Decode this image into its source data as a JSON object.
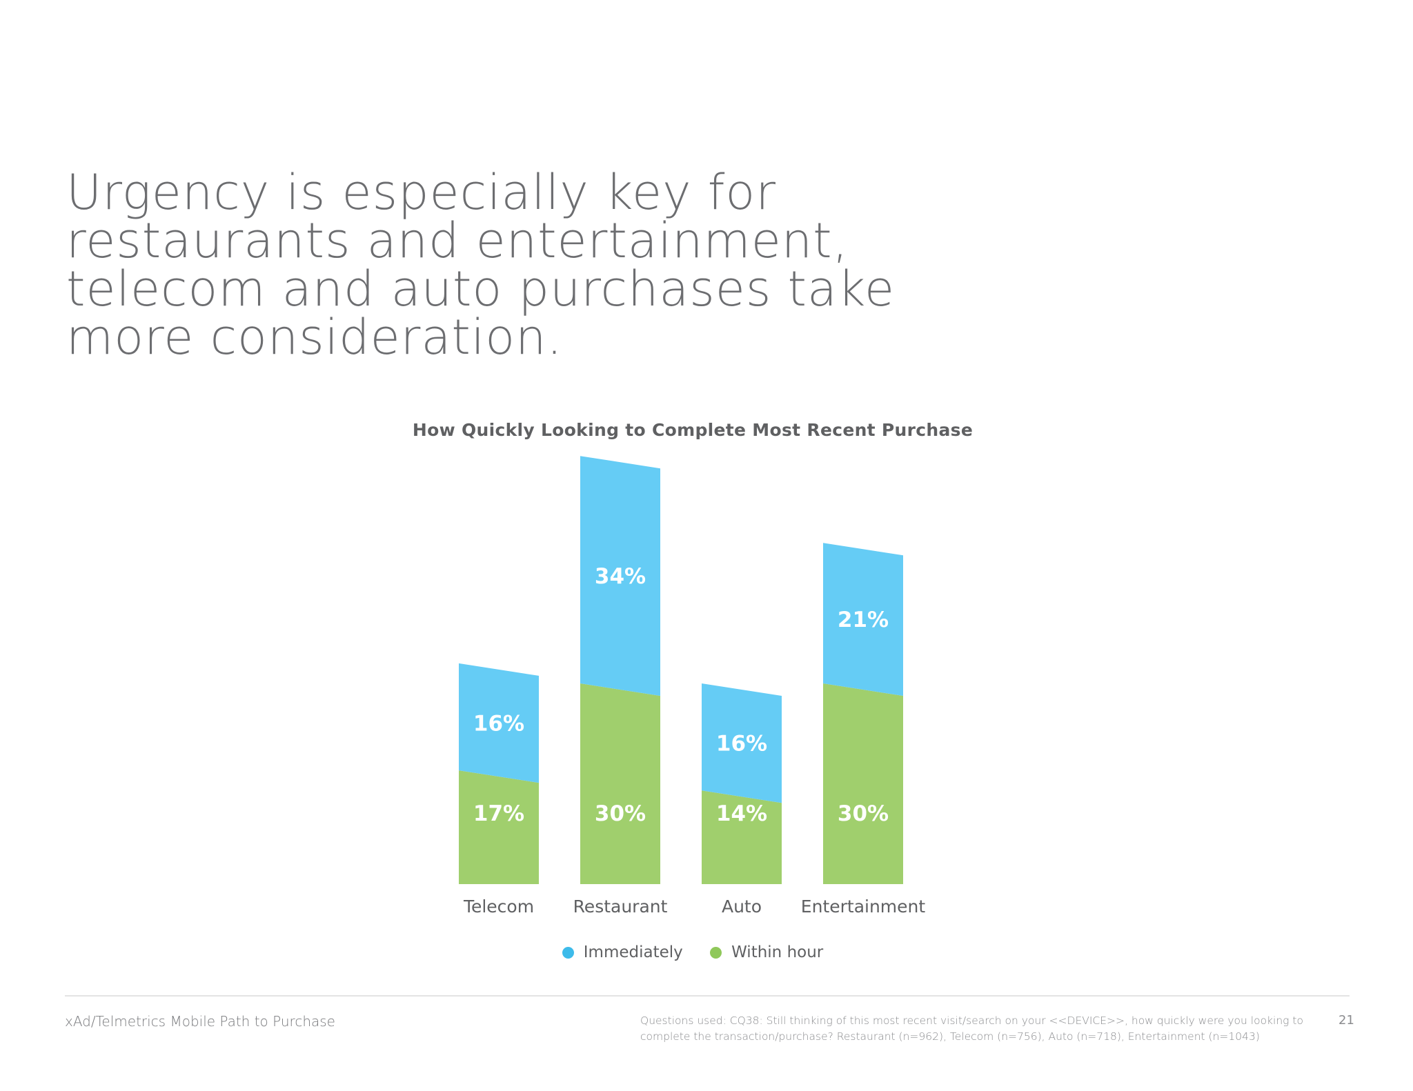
{
  "headline": {
    "lines": [
      "Urgency is especially key for",
      "restaurants and entertainment,",
      "telecom and auto purchases take",
      "more consideration."
    ]
  },
  "chart_data": {
    "type": "bar",
    "stacked": true,
    "title": "How Quickly Looking to Complete Most Recent Purchase",
    "categories": [
      "Telecom",
      "Restaurant",
      "Auto",
      "Entertainment"
    ],
    "series": [
      {
        "name": "Within hour",
        "values": [
          17,
          30,
          14,
          30
        ],
        "labels": [
          "17%",
          "30%",
          "14%",
          "30%"
        ],
        "color": "#a0cf6d"
      },
      {
        "name": "Immediately",
        "values": [
          16,
          34,
          16,
          21
        ],
        "labels": [
          "16%",
          "34%",
          "16%",
          "21%"
        ],
        "color": "#65ccf5"
      }
    ],
    "unit": "%",
    "legend": {
      "position": "bottom-center",
      "order": [
        "Immediately",
        "Within hour"
      ]
    },
    "grid": false
  },
  "legend": {
    "immediately": "Immediately",
    "within_hour": "Within hour",
    "immediately_color": "#3dbbea",
    "within_hour_color": "#8fc85a"
  },
  "footer": {
    "source": "xAd/Telmetrics Mobile Path to Purchase",
    "note_line1": "Questions used: CQ38: Still thinking of this most recent visit/search on your <<DEVICE>>, how quickly were you looking to",
    "note_line2": "complete the transaction/purchase? Restaurant (n=962), Telecom (n=756), Auto (n=718), Entertainment (n=1043)",
    "page_number": "21"
  }
}
